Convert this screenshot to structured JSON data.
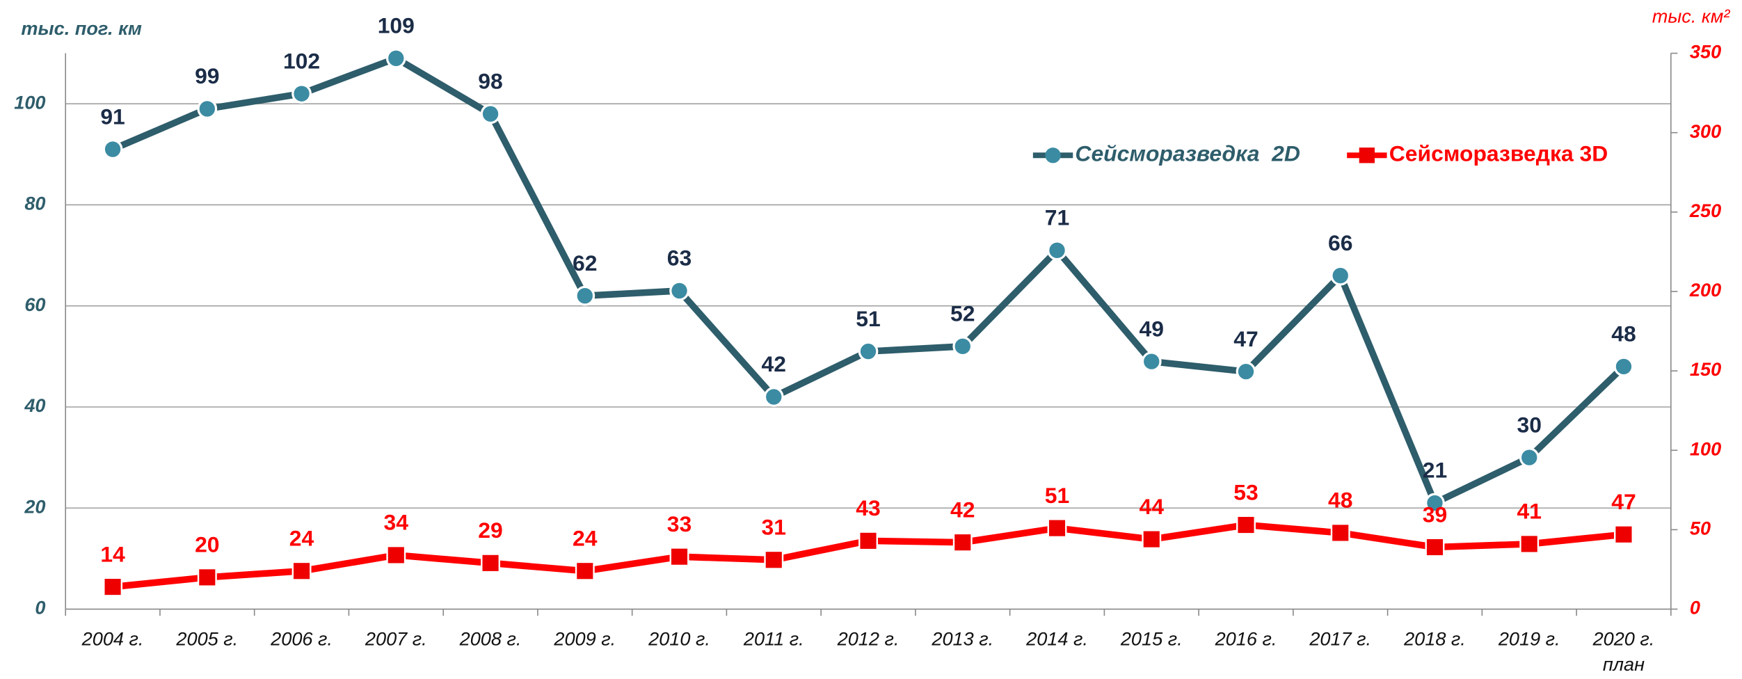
{
  "chart_data": {
    "type": "line",
    "y_label": "тыс. пог. км",
    "y2_label": "тыс. км²",
    "categories": [
      "2004 г.",
      "2005 г.",
      "2006 г.",
      "2007 г.",
      "2008 г.",
      "2009 г.",
      "2010 г.",
      "2011 г.",
      "2012 г.",
      "2013 г.",
      "2014 г.",
      "2015 г.",
      "2016 г.",
      "2017 г.",
      "2018 г.",
      "2019 г.",
      "2020 г."
    ],
    "category_note": "план",
    "series": [
      {
        "name": "Сейсморазведка  2D",
        "color": "#2e5d6b",
        "marker_color": "#3b8ba3",
        "label_color": "#1b2c47",
        "marker": "circle",
        "values": [
          91,
          99,
          102,
          109,
          98,
          62,
          63,
          42,
          51,
          52,
          71,
          49,
          47,
          66,
          21,
          30,
          48
        ]
      },
      {
        "name": "Сейсморазведка 3D",
        "color": "#ff0000",
        "marker_color": "#ee0000",
        "label_color": "#ff0000",
        "marker": "square",
        "axis": "y2",
        "values": [
          14,
          20,
          24,
          34,
          29,
          24,
          33,
          31,
          43,
          42,
          51,
          44,
          53,
          48,
          39,
          41,
          47
        ]
      }
    ],
    "ylim": [
      0,
      110
    ],
    "yticks": [
      0,
      20,
      40,
      60,
      80,
      100
    ],
    "y2lim": [
      0,
      350
    ],
    "y2ticks": [
      0,
      50,
      100,
      150,
      200,
      250,
      300,
      350
    ],
    "grid": true,
    "legend": "upper right"
  }
}
